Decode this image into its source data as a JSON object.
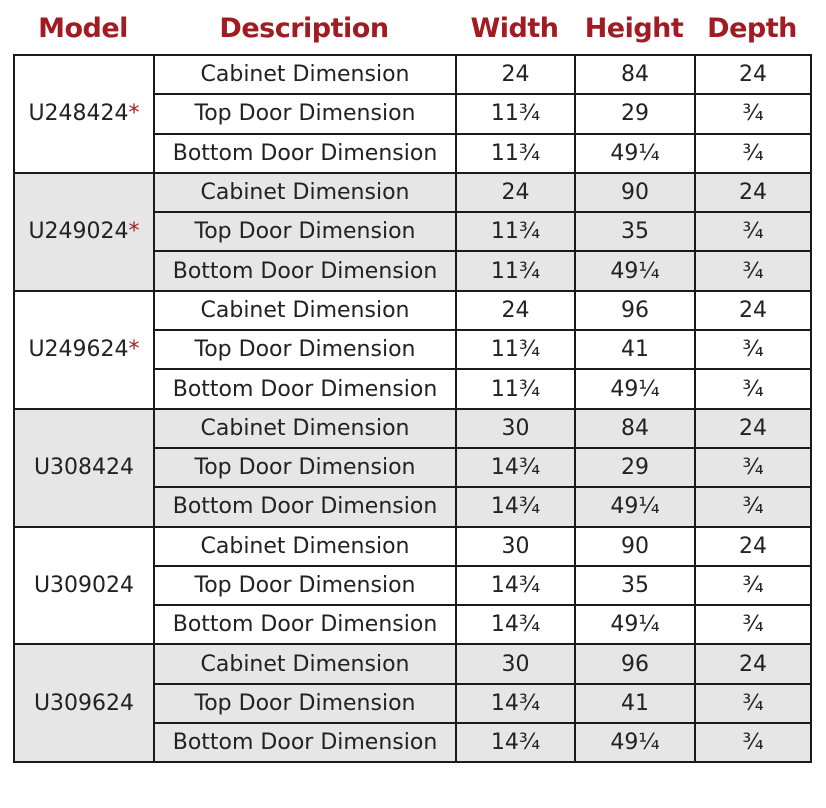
{
  "headers": {
    "model": "Model",
    "description": "Description",
    "width": "Width",
    "height": "Height",
    "depth": "Depth"
  },
  "colors": {
    "header": "#a01c22",
    "asterisk": "#a01c22",
    "shade": "#e6e6e6"
  },
  "models": [
    {
      "model": "U248424",
      "asterisk": "*",
      "rows": [
        {
          "description": "Cabinet Dimension",
          "width": "24",
          "height": "84",
          "depth": "24"
        },
        {
          "description": "Top Door Dimension",
          "width": "11¾",
          "height": "29",
          "depth": "¾"
        },
        {
          "description": "Bottom Door Dimension",
          "width": "11¾",
          "height": "49¼",
          "depth": "¾"
        }
      ]
    },
    {
      "model": "U249024",
      "asterisk": "*",
      "rows": [
        {
          "description": "Cabinet Dimension",
          "width": "24",
          "height": "90",
          "depth": "24"
        },
        {
          "description": "Top Door Dimension",
          "width": "11¾",
          "height": "35",
          "depth": "¾"
        },
        {
          "description": "Bottom Door Dimension",
          "width": "11¾",
          "height": "49¼",
          "depth": "¾"
        }
      ]
    },
    {
      "model": "U249624",
      "asterisk": "*",
      "rows": [
        {
          "description": "Cabinet Dimension",
          "width": "24",
          "height": "96",
          "depth": "24"
        },
        {
          "description": "Top Door Dimension",
          "width": "11¾",
          "height": "41",
          "depth": "¾"
        },
        {
          "description": "Bottom Door Dimension",
          "width": "11¾",
          "height": "49¼",
          "depth": "¾"
        }
      ]
    },
    {
      "model": "U308424",
      "asterisk": "",
      "rows": [
        {
          "description": "Cabinet Dimension",
          "width": "30",
          "height": "84",
          "depth": "24"
        },
        {
          "description": "Top Door Dimension",
          "width": "14¾",
          "height": "29",
          "depth": "¾"
        },
        {
          "description": "Bottom Door Dimension",
          "width": "14¾",
          "height": "49¼",
          "depth": "¾"
        }
      ]
    },
    {
      "model": "U309024",
      "asterisk": "",
      "rows": [
        {
          "description": "Cabinet Dimension",
          "width": "30",
          "height": "90",
          "depth": "24"
        },
        {
          "description": "Top Door Dimension",
          "width": "14¾",
          "height": "35",
          "depth": "¾"
        },
        {
          "description": "Bottom Door Dimension",
          "width": "14¾",
          "height": "49¼",
          "depth": "¾"
        }
      ]
    },
    {
      "model": "U309624",
      "asterisk": "",
      "rows": [
        {
          "description": "Cabinet Dimension",
          "width": "30",
          "height": "96",
          "depth": "24"
        },
        {
          "description": "Top Door Dimension",
          "width": "14¾",
          "height": "41",
          "depth": "¾"
        },
        {
          "description": "Bottom Door Dimension",
          "width": "14¾",
          "height": "49¼",
          "depth": "¾"
        }
      ]
    }
  ]
}
